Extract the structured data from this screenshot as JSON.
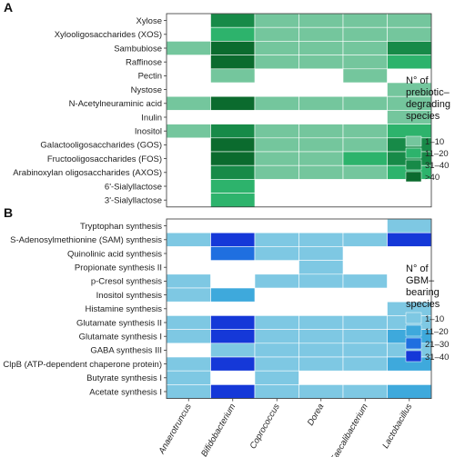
{
  "chart_data": [
    {
      "type": "heatmap",
      "panel_label": "A",
      "columns": [
        "Anaerotruncus",
        "Bifidobacterium",
        "Coprococcus",
        "Dorea",
        "Faecalibacterium",
        "Lactobacillus"
      ],
      "rows": [
        "Xylose",
        "Xylooligosaccharides (XOS)",
        "Sambubiose",
        "Raffinose",
        "Pectin",
        "Nystose",
        "N-Acetylneuraminic acid",
        "Inulin",
        "Inositol",
        "Galactooligosaccharides (GOS)",
        "Fructooligosaccharides (FOS)",
        "Arabinoxylan oligosaccharides (AXOS)",
        "6'-Sialyllactose",
        "3'-Sialyllactose"
      ],
      "values": [
        [
          null,
          "31-40",
          "1-10",
          "1-10",
          "1-10",
          "1-10"
        ],
        [
          null,
          "11-20",
          "1-10",
          "1-10",
          "1-10",
          "1-10"
        ],
        [
          "1-10",
          ">40",
          "1-10",
          "1-10",
          "1-10",
          "31-40"
        ],
        [
          null,
          ">40",
          "1-10",
          "1-10",
          "1-10",
          "11-20"
        ],
        [
          null,
          "1-10",
          null,
          null,
          "1-10",
          null
        ],
        [
          null,
          null,
          null,
          null,
          null,
          "1-10"
        ],
        [
          "1-10",
          ">40",
          "1-10",
          "1-10",
          "1-10",
          "1-10"
        ],
        [
          null,
          null,
          null,
          null,
          null,
          "1-10"
        ],
        [
          "1-10",
          "31-40",
          "1-10",
          "1-10",
          "1-10",
          "11-20"
        ],
        [
          null,
          ">40",
          "1-10",
          "1-10",
          "1-10",
          "31-40"
        ],
        [
          null,
          ">40",
          "1-10",
          "1-10",
          "11-20",
          "31-40"
        ],
        [
          null,
          "31-40",
          "1-10",
          "1-10",
          "1-10",
          "11-20"
        ],
        [
          null,
          "11-20",
          null,
          null,
          null,
          null
        ],
        [
          null,
          "11-20",
          null,
          null,
          null,
          null
        ]
      ],
      "legend": {
        "title": [
          "N° of",
          "prebiotic–",
          "degrading",
          "species"
        ],
        "bins": [
          "1–10",
          "11–20",
          "31–40",
          ">40"
        ],
        "keys": [
          "1-10",
          "11-20",
          "31-40",
          ">40"
        ],
        "colors": [
          "#74c69d",
          "#2db36c",
          "#178a48",
          "#0b6b2e"
        ]
      }
    },
    {
      "type": "heatmap",
      "panel_label": "B",
      "columns": [
        "Anaerotruncus",
        "Bifidobacterium",
        "Coprococcus",
        "Dorea",
        "Faecalibacterium",
        "Lactobacillus"
      ],
      "rows": [
        "Tryptophan synthesis",
        "S-Adenosylmethionine (SAM) synthesis",
        "Quinolinic acid synthesis",
        "Propionate synthesis II",
        "p-Cresol synthesis",
        "Inositol synthesis",
        "Histamine synthesis",
        "Glutamate synthesis II",
        "Glutamate synthesis I",
        "GABA synthesis III",
        "ClpB (ATP-dependent chaperone protein)",
        "Butyrate synthesis I",
        "Acetate synthesis I"
      ],
      "values": [
        [
          null,
          null,
          null,
          null,
          null,
          "1-10"
        ],
        [
          "1-10",
          "31-40",
          "1-10",
          "1-10",
          "1-10",
          "31-40"
        ],
        [
          null,
          "21-30",
          "1-10",
          "1-10",
          null,
          null
        ],
        [
          null,
          null,
          null,
          "1-10",
          null,
          null
        ],
        [
          "1-10",
          null,
          "1-10",
          "1-10",
          "1-10",
          null
        ],
        [
          "1-10",
          "11-20",
          null,
          null,
          null,
          null
        ],
        [
          null,
          null,
          null,
          null,
          null,
          "1-10"
        ],
        [
          "1-10",
          "31-40",
          "1-10",
          "1-10",
          "1-10",
          "1-10"
        ],
        [
          "1-10",
          "31-40",
          "1-10",
          "1-10",
          "1-10",
          "11-20"
        ],
        [
          null,
          "1-10",
          "1-10",
          "1-10",
          "1-10",
          "1-10"
        ],
        [
          "1-10",
          "31-40",
          "1-10",
          "1-10",
          "1-10",
          "11-20"
        ],
        [
          "1-10",
          null,
          "1-10",
          null,
          null,
          null
        ],
        [
          "1-10",
          "31-40",
          "1-10",
          "1-10",
          "1-10",
          "11-20"
        ]
      ],
      "legend": {
        "title": [
          "N° of",
          "GBM–",
          "bearing",
          "species"
        ],
        "bins": [
          "1–10",
          "11–20",
          "21–30",
          "31–40"
        ],
        "keys": [
          "1-10",
          "11-20",
          "21-30",
          "31-40"
        ],
        "colors": [
          "#7ec8e3",
          "#3ea9dc",
          "#1f6fe0",
          "#1538d8"
        ]
      }
    }
  ]
}
